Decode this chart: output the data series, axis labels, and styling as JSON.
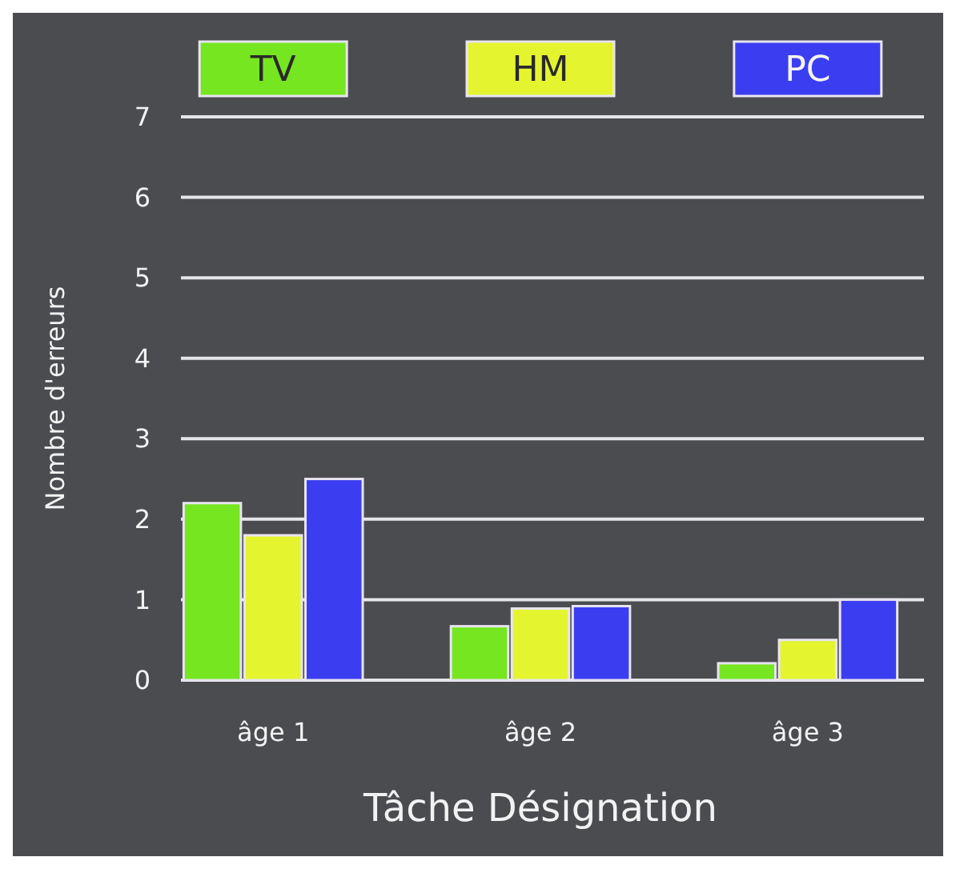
{
  "chart_data": {
    "type": "bar",
    "xlabel": "Tâche Désignation",
    "ylabel": "Nombre d'erreurs",
    "categories": [
      "âge 1",
      "âge 2",
      "âge 3"
    ],
    "series": [
      {
        "name": "TV",
        "color": "#76e620",
        "values": [
          2.2,
          0.67,
          0.21
        ]
      },
      {
        "name": "HM",
        "color": "#e4f530",
        "values": [
          1.8,
          0.89,
          0.5
        ]
      },
      {
        "name": "PC",
        "color": "#3b3ef0",
        "values": [
          2.5,
          0.92,
          1.0
        ]
      }
    ],
    "ylim": [
      0,
      7
    ],
    "yticks": [
      0,
      1,
      2,
      3,
      4,
      5,
      6,
      7
    ],
    "grid": "y",
    "legend": "top"
  }
}
